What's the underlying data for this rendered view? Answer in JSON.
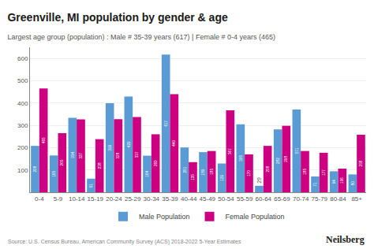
{
  "chart_data": {
    "type": "bar",
    "title": "Greenville, MI population by gender & age",
    "subtitle": "Largest age group (population) : Male # 35-39 years (617) | Female # 0-4 years (465)",
    "annotations": [
      "Source: U.S. Census Bureau, American Community Survey (ACS) 2018-2022 5-Year Estimates",
      "Neilsberg"
    ],
    "categories": [
      "0-4",
      "5-9",
      "10-14",
      "15-19",
      "20-24",
      "25-29",
      "30-34",
      "35-39",
      "40-44",
      "45-49",
      "50-54",
      "55-59",
      "60-64",
      "65-69",
      "70-74",
      "75-79",
      "80-84",
      "85+"
    ],
    "series": [
      {
        "name": "Male Population",
        "color": "#5b9bd5",
        "values": [
          208,
          165,
          334,
          61,
          399,
          429,
          164,
          617,
          201,
          180,
          129,
          305,
          29,
          282,
          371,
          71,
          94,
          80
        ]
      },
      {
        "name": "Female Population",
        "color": "#cc0080",
        "values": [
          465,
          265,
          327,
          238,
          328,
          337,
          260,
          440,
          135,
          185,
          367,
          170,
          208,
          298,
          185,
          177,
          106,
          258
        ]
      }
    ],
    "ylim": [
      0,
      650
    ],
    "yticks": [
      100,
      200,
      300,
      400,
      500,
      600
    ],
    "grid": true,
    "legend": "bottom",
    "data_labels": true
  }
}
